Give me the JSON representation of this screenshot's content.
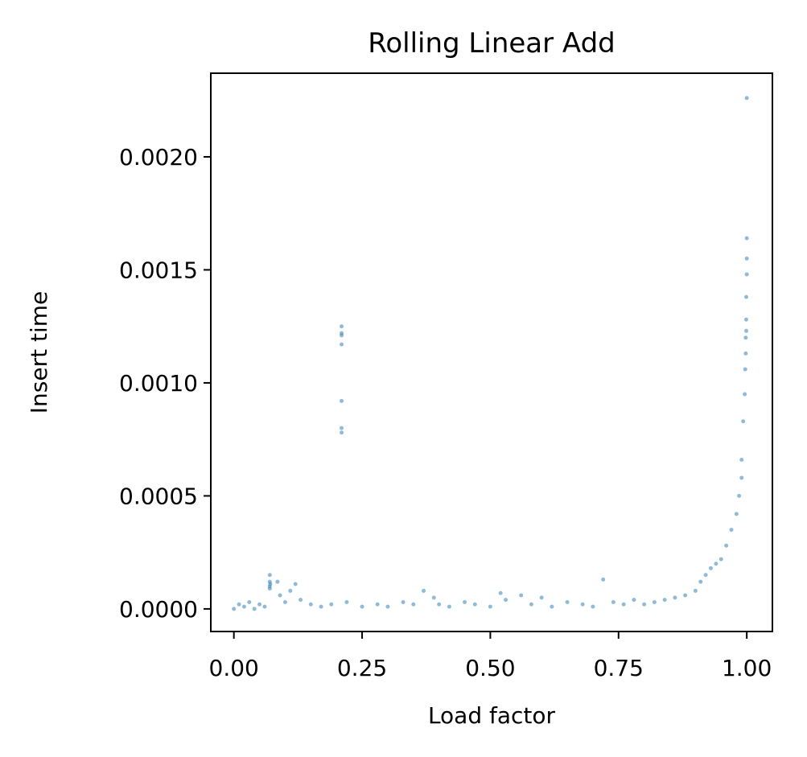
{
  "chart_data": {
    "type": "scatter",
    "title": "Rolling Linear Add",
    "xlabel": "Load factor",
    "ylabel": "Insert time",
    "xlim": [
      -0.045,
      1.05
    ],
    "ylim": [
      -0.0001,
      0.00237
    ],
    "xticks": [
      0.0,
      0.25,
      0.5,
      0.75,
      1.0
    ],
    "xtick_labels": [
      "0.00",
      "0.25",
      "0.50",
      "0.75",
      "1.00"
    ],
    "yticks": [
      0.0,
      0.0005,
      0.001,
      0.0015,
      0.002
    ],
    "ytick_labels": [
      "0.0000",
      "0.0005",
      "0.0010",
      "0.0015",
      "0.0020"
    ],
    "grid": false,
    "marker_color": "#1f77b4",
    "marker_alpha": 0.5,
    "series": [
      {
        "points": [
          [
            0.0,
            0.0
          ],
          [
            0.01,
            2e-05
          ],
          [
            0.02,
            1e-05
          ],
          [
            0.03,
            3e-05
          ],
          [
            0.04,
            0.0
          ],
          [
            0.05,
            2e-05
          ],
          [
            0.06,
            1e-05
          ],
          [
            0.07,
            0.00015
          ],
          [
            0.07,
            0.00012
          ],
          [
            0.07,
            0.0001
          ],
          [
            0.071,
            0.00011
          ],
          [
            0.07,
            9e-05
          ],
          [
            0.085,
            0.00012
          ],
          [
            0.09,
            6e-05
          ],
          [
            0.1,
            3e-05
          ],
          [
            0.11,
            8e-05
          ],
          [
            0.12,
            0.00011
          ],
          [
            0.13,
            4e-05
          ],
          [
            0.15,
            2e-05
          ],
          [
            0.17,
            1e-05
          ],
          [
            0.19,
            2e-05
          ],
          [
            0.21,
            0.00125
          ],
          [
            0.21,
            0.00122
          ],
          [
            0.21,
            0.00121
          ],
          [
            0.21,
            0.00117
          ],
          [
            0.21,
            0.00092
          ],
          [
            0.21,
            0.0008
          ],
          [
            0.21,
            0.00078
          ],
          [
            0.22,
            3e-05
          ],
          [
            0.25,
            1e-05
          ],
          [
            0.28,
            2e-05
          ],
          [
            0.3,
            1e-05
          ],
          [
            0.33,
            3e-05
          ],
          [
            0.35,
            2e-05
          ],
          [
            0.37,
            8e-05
          ],
          [
            0.39,
            5e-05
          ],
          [
            0.4,
            2e-05
          ],
          [
            0.42,
            1e-05
          ],
          [
            0.45,
            3e-05
          ],
          [
            0.47,
            2e-05
          ],
          [
            0.5,
            1e-05
          ],
          [
            0.52,
            7e-05
          ],
          [
            0.53,
            4e-05
          ],
          [
            0.56,
            6e-05
          ],
          [
            0.58,
            2e-05
          ],
          [
            0.6,
            5e-05
          ],
          [
            0.62,
            1e-05
          ],
          [
            0.65,
            3e-05
          ],
          [
            0.68,
            2e-05
          ],
          [
            0.7,
            1e-05
          ],
          [
            0.72,
            0.00013
          ],
          [
            0.74,
            3e-05
          ],
          [
            0.76,
            2e-05
          ],
          [
            0.78,
            4e-05
          ],
          [
            0.8,
            2e-05
          ],
          [
            0.82,
            3e-05
          ],
          [
            0.84,
            4e-05
          ],
          [
            0.86,
            5e-05
          ],
          [
            0.88,
            6e-05
          ],
          [
            0.9,
            8e-05
          ],
          [
            0.91,
            0.00012
          ],
          [
            0.92,
            0.00015
          ],
          [
            0.93,
            0.00018
          ],
          [
            0.94,
            0.0002
          ],
          [
            0.95,
            0.00022
          ],
          [
            0.96,
            0.00028
          ],
          [
            0.97,
            0.00035
          ],
          [
            0.98,
            0.00042
          ],
          [
            0.985,
            0.0005
          ],
          [
            0.99,
            0.00058
          ],
          [
            0.99,
            0.00066
          ],
          [
            0.993,
            0.00083
          ],
          [
            0.996,
            0.00095
          ],
          [
            0.997,
            0.00106
          ],
          [
            0.998,
            0.00113
          ],
          [
            0.998,
            0.0012
          ],
          [
            0.999,
            0.00123
          ],
          [
            0.999,
            0.00128
          ],
          [
            0.999,
            0.00138
          ],
          [
            1.0,
            0.00148
          ],
          [
            1.0,
            0.00155
          ],
          [
            1.0,
            0.00164
          ],
          [
            1.0,
            0.00226
          ]
        ]
      }
    ]
  }
}
